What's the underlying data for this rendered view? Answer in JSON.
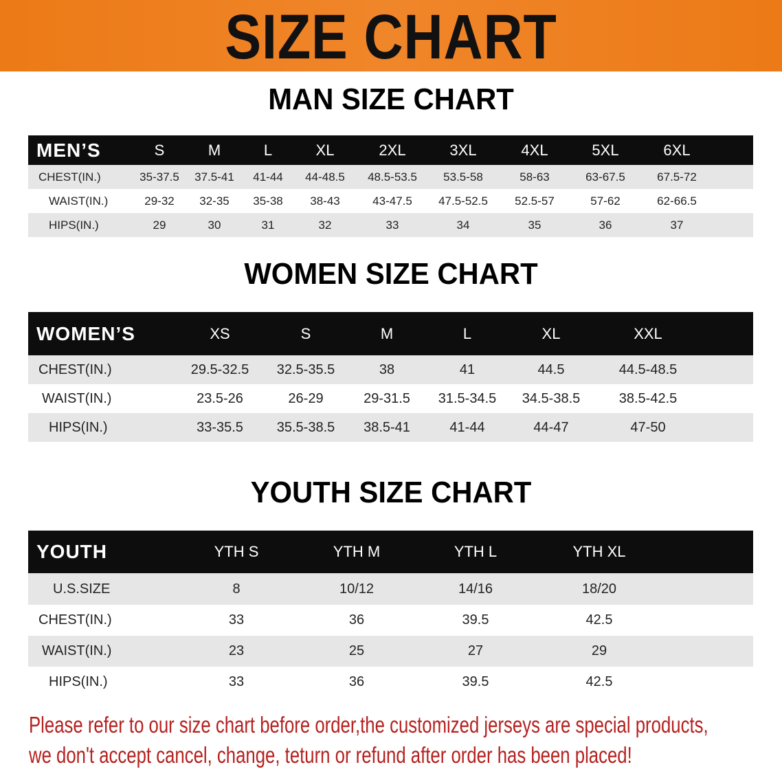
{
  "banner": {
    "title": "SIZE CHART",
    "color": "#ec7a16"
  },
  "men": {
    "title": "MAN SIZE CHART",
    "header": [
      "MEN’S",
      "S",
      "M",
      "L",
      "XL",
      "2XL",
      "3XL",
      "4XL",
      "5XL",
      "6XL"
    ],
    "rows": [
      [
        "CHEST(IN.)",
        "35-37.5",
        "37.5-41",
        "41-44",
        "44-48.5",
        "48.5-53.5",
        "53.5-58",
        "58-63",
        "63-67.5",
        "67.5-72"
      ],
      [
        "WAIST(IN.)",
        "29-32",
        "32-35",
        "35-38",
        "38-43",
        "43-47.5",
        "47.5-52.5",
        "52.5-57",
        "57-62",
        "62-66.5"
      ],
      [
        "HIPS(IN.)",
        "29",
        "30",
        "31",
        "32",
        "33",
        "34",
        "35",
        "36",
        "37"
      ]
    ]
  },
  "women": {
    "title": "WOMEN SIZE CHART",
    "header": [
      "WOMEN’S",
      "XS",
      "S",
      "M",
      "L",
      "XL",
      "XXL"
    ],
    "rows": [
      [
        "CHEST(IN.)",
        "29.5-32.5",
        "32.5-35.5",
        "38",
        "41",
        "44.5",
        "44.5-48.5"
      ],
      [
        "WAIST(IN.)",
        "23.5-26",
        "26-29",
        "29-31.5",
        "31.5-34.5",
        "34.5-38.5",
        "38.5-42.5"
      ],
      [
        "HIPS(IN.)",
        "33-35.5",
        "35.5-38.5",
        "38.5-41",
        "41-44",
        "44-47",
        "47-50"
      ]
    ]
  },
  "youth": {
    "title": "YOUTH SIZE CHART",
    "header": [
      "YOUTH",
      "YTH S",
      "YTH M",
      "YTH L",
      "YTH XL"
    ],
    "rows": [
      [
        "U.S.SIZE",
        "8",
        "10/12",
        "14/16",
        "18/20"
      ],
      [
        "CHEST(IN.)",
        "33",
        "36",
        "39.5",
        "42.5"
      ],
      [
        "WAIST(IN.)",
        "23",
        "25",
        "27",
        "29"
      ],
      [
        "HIPS(IN.)",
        "33",
        "36",
        "39.5",
        "42.5"
      ]
    ]
  },
  "footer": {
    "line1": "Please refer to our size chart before order,the customized jerseys are special products,",
    "line2": "we don't accept cancel, change, teturn or refund after order has been placed!",
    "color": "#b5211f"
  }
}
